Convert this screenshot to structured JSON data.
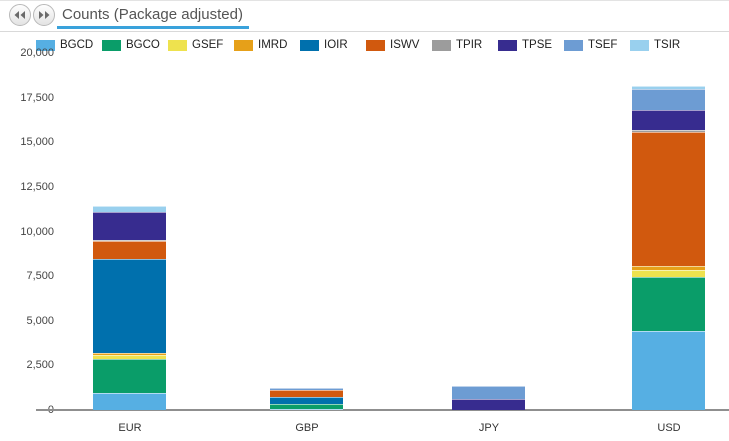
{
  "header": {
    "back_button": "previous view",
    "forward_button": "next view",
    "tab_title": "Counts (Package adjusted)"
  },
  "chart_data": {
    "type": "bar",
    "stacked": true,
    "title": "Counts (Package adjusted)",
    "categories": [
      "EUR",
      "GBP",
      "JPY",
      "USD"
    ],
    "series": [
      {
        "name": "BGCD",
        "color": "#56afe3",
        "values": [
          950,
          60,
          0,
          4400
        ]
      },
      {
        "name": "BGCO",
        "color": "#0a9d69",
        "values": [
          1900,
          300,
          0,
          3000
        ]
      },
      {
        "name": "GSEF",
        "color": "#eee24e",
        "values": [
          220,
          0,
          0,
          400
        ]
      },
      {
        "name": "IMRD",
        "color": "#e6a019",
        "values": [
          110,
          0,
          0,
          250
        ]
      },
      {
        "name": "IOIR",
        "color": "#0070ad",
        "values": [
          5250,
          400,
          0,
          0
        ]
      },
      {
        "name": "ISWV",
        "color": "#d1590e",
        "values": [
          1000,
          380,
          0,
          7500
        ]
      },
      {
        "name": "TPIR",
        "color": "#9c9c9c",
        "values": [
          60,
          0,
          0,
          100
        ]
      },
      {
        "name": "TPSE",
        "color": "#372c8f",
        "values": [
          1570,
          0,
          600,
          1100
        ]
      },
      {
        "name": "TSEF",
        "color": "#6d9cd3",
        "values": [
          0,
          110,
          750,
          1200
        ]
      },
      {
        "name": "TSIR",
        "color": "#99d0ee",
        "values": [
          340,
          0,
          0,
          150
        ]
      }
    ],
    "ylim": [
      0,
      20000
    ],
    "ytick_interval": 2500,
    "ytick_labels": [
      "0",
      "2,500",
      "5,000",
      "7,500",
      "10,000",
      "12,500",
      "15,000",
      "17,500",
      "20,000"
    ],
    "xlabel": "",
    "ylabel": "",
    "grid": false,
    "legend_position": "top",
    "accent_color": "#3aa2db"
  }
}
